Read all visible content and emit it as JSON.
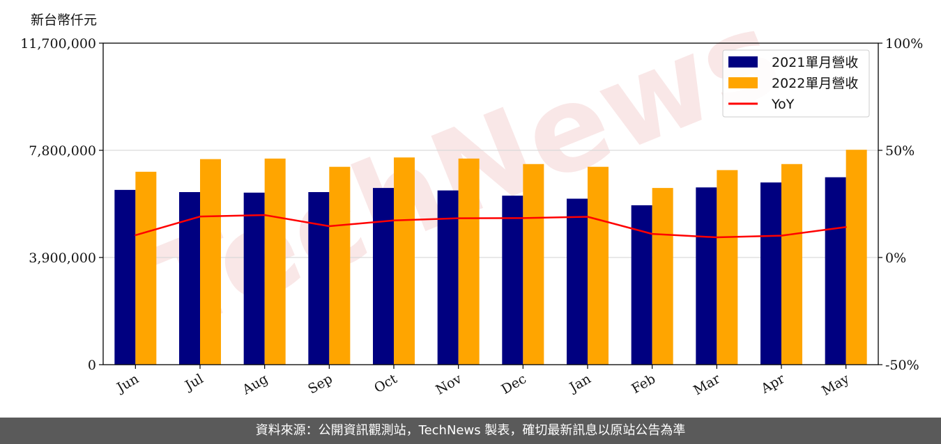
{
  "watermark": "TechNews",
  "footer": "資料來源：公開資訊觀測站，TechNews 製表，確切最新訊息以原站公告為準",
  "chart_data": {
    "type": "bar",
    "unit_label": "新台幣仟元",
    "categories": [
      "Jun",
      "Jul",
      "Aug",
      "Sep",
      "Oct",
      "Nov",
      "Dec",
      "Jan",
      "Feb",
      "Mar",
      "Apr",
      "May"
    ],
    "series": [
      {
        "name": "2021單月營收",
        "type": "bar",
        "axis": "left",
        "color": "#000080",
        "values": [
          6360000,
          6280000,
          6260000,
          6280000,
          6430000,
          6340000,
          6150000,
          6040000,
          5800000,
          6450000,
          6630000,
          6820000
        ]
      },
      {
        "name": "2022單月營收",
        "type": "bar",
        "axis": "left",
        "color": "#FFA500",
        "values": [
          7020000,
          7480000,
          7500000,
          7200000,
          7540000,
          7500000,
          7300000,
          7200000,
          6430000,
          7080000,
          7300000,
          7820000
        ]
      },
      {
        "name": "YoY",
        "type": "line",
        "axis": "right",
        "color": "#FF0000",
        "values": [
          10.4,
          19.1,
          19.8,
          14.6,
          17.3,
          18.3,
          18.4,
          19.0,
          11.0,
          9.4,
          10.2,
          14.2
        ]
      }
    ],
    "y_left": {
      "ylim": [
        0,
        11700000
      ],
      "ticks": [
        0,
        3900000,
        7800000,
        11700000
      ],
      "tick_labels": [
        "0",
        "3,900,000",
        "7,800,000",
        "11,700,000"
      ]
    },
    "y_right": {
      "ylim": [
        -50,
        100
      ],
      "ticks": [
        -50,
        0,
        50,
        100
      ],
      "tick_labels": [
        "-50%",
        "0%",
        "50%",
        "100%"
      ]
    },
    "grid": "horizontal",
    "legend_position": "top-right"
  }
}
